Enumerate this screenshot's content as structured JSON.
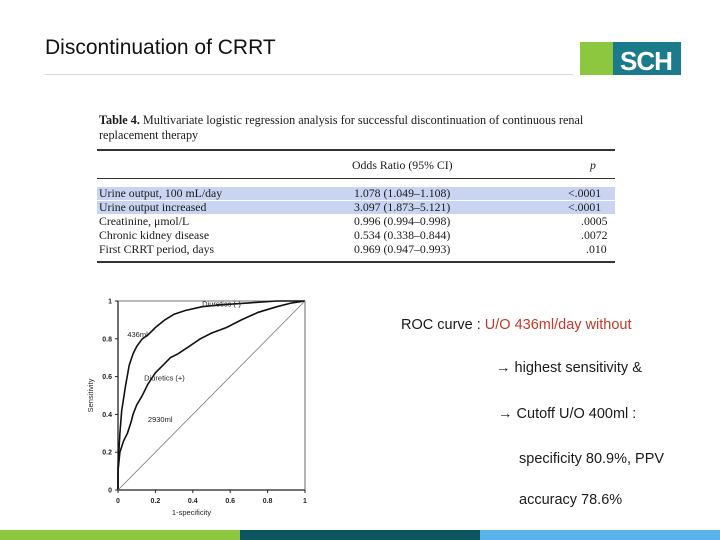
{
  "slide": {
    "title": "Discontinuation of CRRT",
    "logo_text": "SCH",
    "colors": {
      "green": "#8dc63f",
      "teal": "#1b7a8c",
      "dark_teal": "#0f5560",
      "light_blue": "#5ab3e8",
      "highlight": "#c9d4f2",
      "red_text": "#c0392b"
    }
  },
  "table": {
    "label": "Table 4.",
    "caption": "Multivariate logistic regression analysis for successful discontinuation of continuous renal replacement therapy",
    "headers": {
      "odds": "Odds Ratio (95% CI)",
      "p": "p"
    },
    "rows": [
      {
        "name": "Urine output, 100 mL/day",
        "odds": "1.078 (1.049–1.108)",
        "p": "<.0001",
        "highlight": true
      },
      {
        "name": "Urine output increased",
        "odds": "3.097 (1.873–5.121)",
        "p": "<.0001",
        "highlight": true
      },
      {
        "name": "Creatinine, μmol/L",
        "odds": "0.996 (0.994–0.998)",
        "p": ".0005",
        "highlight": false
      },
      {
        "name": "Chronic kidney disease",
        "odds": "0.534 (0.338–0.844)",
        "p": ".0072",
        "highlight": false
      },
      {
        "name": "First CRRT period, days",
        "odds": "0.969 (0.947–0.993)",
        "p": ".010",
        "highlight": false
      }
    ]
  },
  "notes": {
    "line1_prefix": "ROC curve : ",
    "line1_red": "U/O 436ml/day without",
    "line2": "highest sensitivity &",
    "line3": "Cutoff U/O 400ml :",
    "line4": "specificity 80.9%, PPV",
    "line5": "accuracy 78.6%",
    "arrow": "→"
  },
  "chart_data": {
    "type": "line",
    "xlabel": "1-specificity",
    "ylabel": "Sensitivity",
    "xlim": [
      0,
      1
    ],
    "ylim": [
      0,
      1
    ],
    "x_ticks": [
      "0",
      "0.2",
      "0.4",
      "0.6",
      "0.8",
      "1"
    ],
    "y_ticks": [
      "0",
      "0.2",
      "0.4",
      "0.6",
      "0.8",
      "1"
    ],
    "series": [
      {
        "name": "Diuretics (-)",
        "points": [
          [
            0,
            0
          ],
          [
            0,
            0.12
          ],
          [
            0.01,
            0.3
          ],
          [
            0.02,
            0.42
          ],
          [
            0.04,
            0.55
          ],
          [
            0.06,
            0.66
          ],
          [
            0.08,
            0.72
          ],
          [
            0.1,
            0.76
          ],
          [
            0.13,
            0.8
          ],
          [
            0.16,
            0.82
          ],
          [
            0.2,
            0.86
          ],
          [
            0.25,
            0.9
          ],
          [
            0.3,
            0.93
          ],
          [
            0.36,
            0.95
          ],
          [
            0.45,
            0.97
          ],
          [
            0.55,
            0.98
          ],
          [
            0.7,
            0.99
          ],
          [
            0.85,
            1.0
          ],
          [
            1,
            1
          ]
        ]
      },
      {
        "name": "Diuretics (+)",
        "points": [
          [
            0,
            0
          ],
          [
            0,
            0.1
          ],
          [
            0.01,
            0.2
          ],
          [
            0.03,
            0.26
          ],
          [
            0.05,
            0.3
          ],
          [
            0.07,
            0.36
          ],
          [
            0.08,
            0.4
          ],
          [
            0.1,
            0.45
          ],
          [
            0.13,
            0.5
          ],
          [
            0.16,
            0.56
          ],
          [
            0.2,
            0.62
          ],
          [
            0.24,
            0.66
          ],
          [
            0.28,
            0.7
          ],
          [
            0.32,
            0.72
          ],
          [
            0.38,
            0.76
          ],
          [
            0.44,
            0.8
          ],
          [
            0.5,
            0.83
          ],
          [
            0.58,
            0.86
          ],
          [
            0.66,
            0.9
          ],
          [
            0.75,
            0.94
          ],
          [
            0.85,
            0.97
          ],
          [
            0.93,
            0.99
          ],
          [
            1,
            1
          ]
        ]
      },
      {
        "name": "",
        "points": [
          [
            0,
            0
          ],
          [
            1,
            1
          ]
        ]
      }
    ],
    "annotations": [
      {
        "text": "Diuretics (-)",
        "x": 0.45,
        "y": 0.97
      },
      {
        "text": "436ml",
        "x": 0.05,
        "y": 0.81
      },
      {
        "text": "Diuretics (+)",
        "x": 0.14,
        "y": 0.58
      },
      {
        "text": "2930ml",
        "x": 0.16,
        "y": 0.36
      }
    ]
  }
}
